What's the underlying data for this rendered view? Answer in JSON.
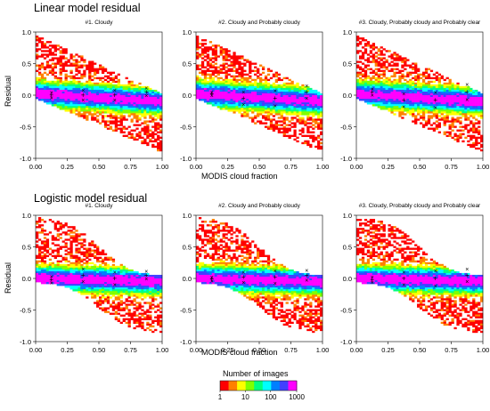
{
  "sections": [
    {
      "title": "Linear model residual",
      "ylabel": "Residual",
      "xlabel": "MODIS cloud fraction",
      "model": "linear"
    },
    {
      "title": "Logistic model residual",
      "ylabel": "Residual",
      "xlabel": "MODIS cloud fraction",
      "model": "logistic"
    }
  ],
  "panel_titles": [
    "#1. Cloudy",
    "#2. Cloudy and Probably cloudy",
    "#3. Cloudy, Probably cloudy and Probably clear"
  ],
  "axes": {
    "xlim": [
      0,
      1
    ],
    "ylim": [
      -1,
      1
    ],
    "xticks": [
      "0.00",
      "0.25",
      "0.50",
      "0.75",
      "1.00"
    ],
    "yticks": [
      "1.0",
      "0.5",
      "0.0",
      "-0.5",
      "-1.0"
    ]
  },
  "legend": {
    "title": "Number of images",
    "tick_labels": [
      "1",
      "10",
      "100",
      "1000"
    ],
    "colors": [
      "#ff0000",
      "#ff8000",
      "#ffff00",
      "#80ff00",
      "#00ff80",
      "#00ffff",
      "#0080ff",
      "#4040ff",
      "#ff00ff"
    ]
  },
  "chart_data": [
    {
      "type": "heatmap",
      "title": "#1. Cloudy",
      "section": "Linear model residual",
      "xlabel": "",
      "ylabel": "Residual",
      "xlim": [
        0,
        1
      ],
      "ylim": [
        -1,
        1
      ],
      "bin_markers": {
        "x": [
          0.125,
          0.375,
          0.625,
          0.875
        ],
        "median": [
          0.0,
          0.0,
          0.0,
          0.05
        ],
        "spread": [
          0.04,
          0.08,
          0.08,
          0.06
        ]
      }
    },
    {
      "type": "heatmap",
      "title": "#2. Cloudy and Probably cloudy",
      "section": "Linear model residual",
      "xlabel": "MODIS cloud fraction",
      "ylabel": "",
      "xlim": [
        0,
        1
      ],
      "ylim": [
        -1,
        1
      ],
      "bin_markers": {
        "x": [
          0.125,
          0.375,
          0.625,
          0.875
        ],
        "median": [
          0.02,
          -0.05,
          -0.05,
          0.05
        ],
        "spread": [
          0.03,
          0.1,
          0.12,
          0.1
        ]
      }
    },
    {
      "type": "heatmap",
      "title": "#3. Cloudy, Probably cloudy and Probably clear",
      "section": "Linear model residual",
      "xlabel": "",
      "ylabel": "",
      "xlim": [
        0,
        1
      ],
      "ylim": [
        -1,
        1
      ],
      "bin_markers": {
        "x": [
          0.125,
          0.375,
          0.625,
          0.875
        ],
        "median": [
          0.05,
          -0.08,
          -0.08,
          0.05
        ],
        "spread": [
          0.05,
          0.1,
          0.12,
          0.12
        ]
      }
    },
    {
      "type": "heatmap",
      "title": "#1. Cloudy",
      "section": "Logistic model residual",
      "xlabel": "",
      "ylabel": "Residual",
      "xlim": [
        0,
        1
      ],
      "ylim": [
        -1,
        1
      ],
      "bin_markers": {
        "x": [
          0.125,
          0.375,
          0.625,
          0.875
        ],
        "median": [
          -0.02,
          0.05,
          0.0,
          0.05
        ],
        "spread": [
          0.05,
          0.1,
          0.1,
          0.06
        ]
      }
    },
    {
      "type": "heatmap",
      "title": "#2. Cloudy and Probably cloudy",
      "section": "Logistic model residual",
      "xlabel": "MODIS cloud fraction",
      "ylabel": "",
      "xlim": [
        0,
        1
      ],
      "ylim": [
        -1,
        1
      ],
      "bin_markers": {
        "x": [
          0.125,
          0.375,
          0.625,
          0.875
        ],
        "median": [
          -0.01,
          0.02,
          0.02,
          0.05
        ],
        "spread": [
          0.03,
          0.08,
          0.1,
          0.08
        ]
      }
    },
    {
      "type": "heatmap",
      "title": "#3. Cloudy, Probably cloudy and Probably clear",
      "section": "Logistic model residual",
      "xlabel": "",
      "ylabel": "",
      "xlim": [
        0,
        1
      ],
      "ylim": [
        -1,
        1
      ],
      "bin_markers": {
        "x": [
          0.125,
          0.375,
          0.625,
          0.875
        ],
        "median": [
          -0.02,
          0.0,
          0.0,
          0.05
        ],
        "spread": [
          0.04,
          0.1,
          0.12,
          0.1
        ]
      }
    }
  ]
}
